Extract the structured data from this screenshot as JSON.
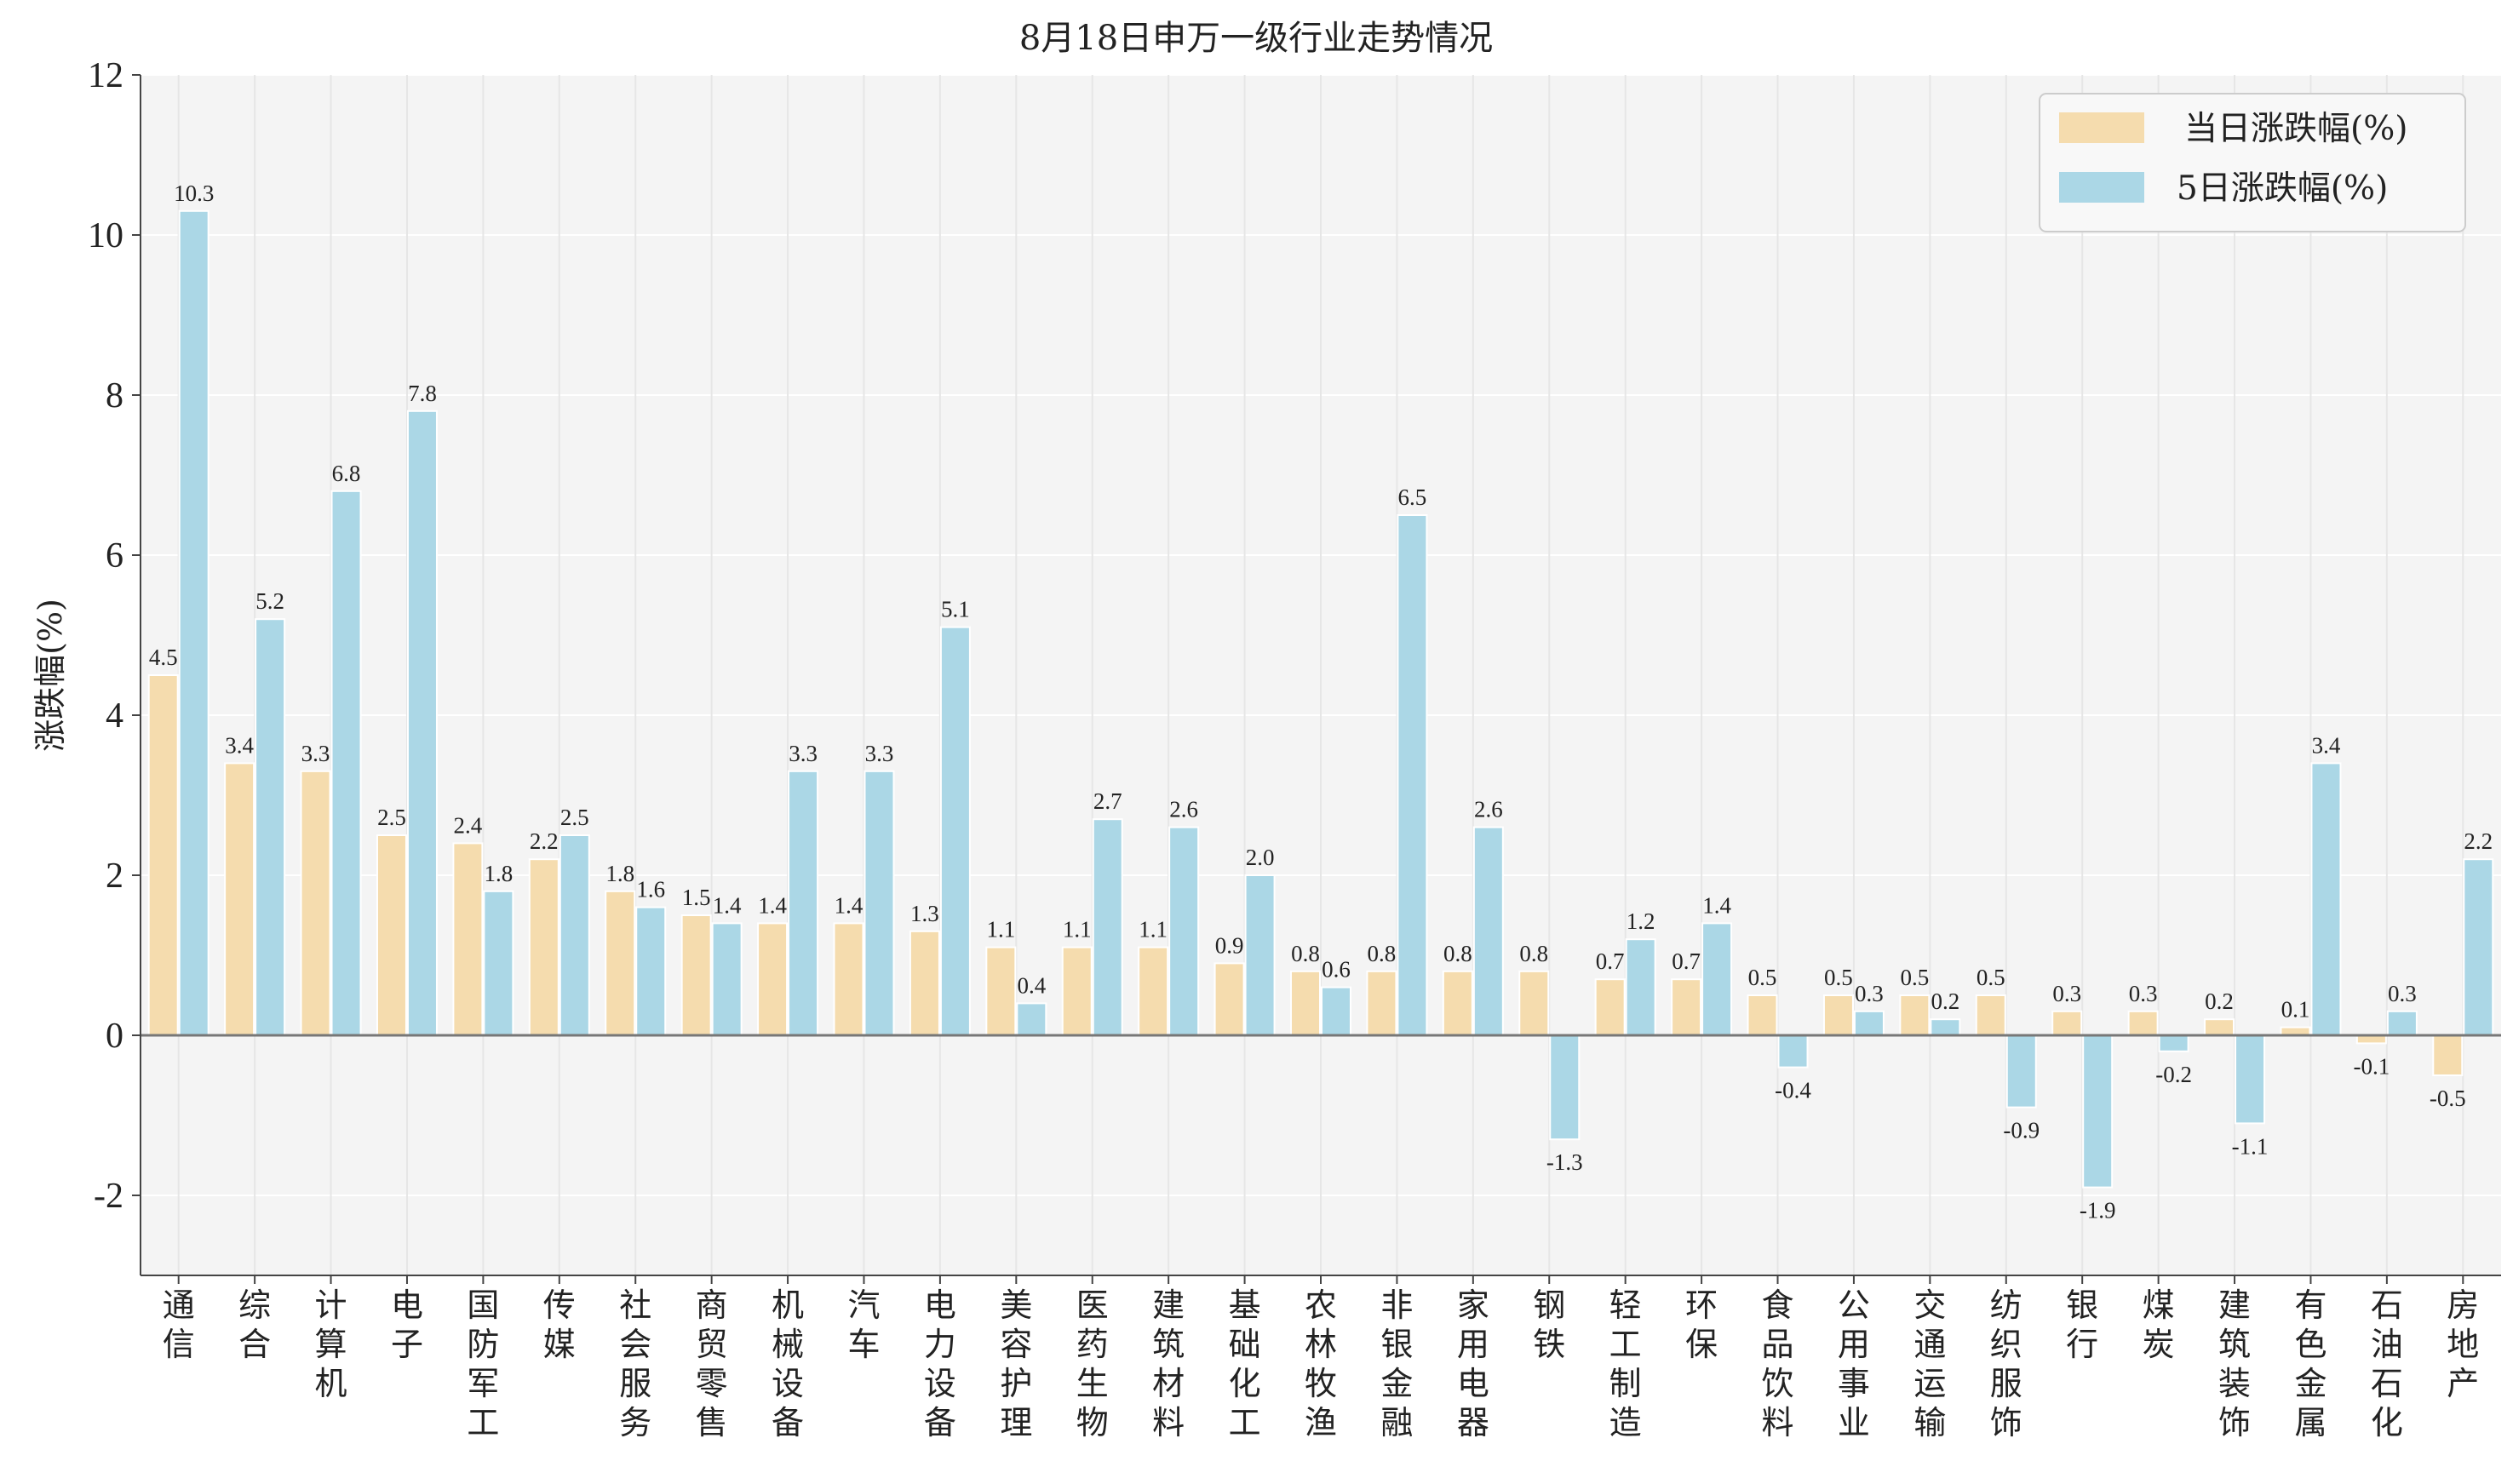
{
  "chart_data": {
    "type": "bar",
    "title": "8月18日申万一级行业走势情况",
    "xlabel": "",
    "ylabel": "涨跌幅(%)",
    "ylim": [
      -3,
      12
    ],
    "yticks": [
      -2,
      0,
      2,
      4,
      6,
      8,
      10,
      12
    ],
    "grid": true,
    "legend_position": "top-right",
    "categories": [
      "通信",
      "综合",
      "计算机",
      "电子",
      "国防军工",
      "传媒",
      "社会服务",
      "商贸零售",
      "机械设备",
      "汽车",
      "电力设备",
      "美容护理",
      "医药生物",
      "建筑材料",
      "基础化工",
      "农林牧渔",
      "非银金融",
      "家用电器",
      "钢铁",
      "轻工制造",
      "环保",
      "食品饮料",
      "公用事业",
      "交通运输",
      "纺织服饰",
      "银行",
      "煤炭",
      "建筑装饰",
      "有色金属",
      "石油石化",
      "房地产"
    ],
    "series": [
      {
        "name": "当日涨跌幅(%)",
        "color": "#f5dcae",
        "values": [
          4.5,
          3.4,
          3.3,
          2.5,
          2.4,
          2.2,
          1.8,
          1.5,
          1.4,
          1.4,
          1.3,
          1.1,
          1.1,
          1.1,
          0.9,
          0.8,
          0.8,
          0.8,
          0.8,
          0.7,
          0.7,
          0.5,
          0.5,
          0.5,
          0.5,
          0.3,
          0.3,
          0.2,
          0.1,
          -0.1,
          -0.5
        ],
        "labels": [
          "4.5",
          "3.4",
          "3.3",
          "2.5",
          "2.4",
          "2.2",
          "1.8",
          "1.5",
          "1.4",
          "1.4",
          "1.3",
          "1.1",
          "1.1",
          "1.1",
          "0.9",
          "0.8",
          "0.8",
          "0.8",
          "0.8",
          "0.7",
          "0.7",
          "0.5",
          "0.5",
          "0.5",
          "0.5",
          "0.3",
          "0.3",
          "0.2",
          "0.1",
          "-0.1",
          "-0.5"
        ]
      },
      {
        "name": "5日涨跌幅(%)",
        "color": "#abd7e6",
        "values": [
          10.3,
          5.2,
          6.8,
          7.8,
          1.8,
          2.5,
          1.6,
          1.4,
          3.3,
          3.3,
          5.1,
          0.4,
          2.7,
          2.6,
          2.0,
          0.6,
          6.5,
          2.6,
          -1.3,
          1.2,
          1.4,
          -0.4,
          0.3,
          0.2,
          -0.9,
          -1.9,
          -0.2,
          -1.1,
          3.4,
          0.3,
          2.2
        ],
        "labels": [
          "10.3",
          "5.2",
          "6.8",
          "7.8",
          "1.8",
          "2.5",
          "1.6",
          "1.4",
          "3.3",
          "3.3",
          "5.1",
          "0.4",
          "2.7",
          "2.6",
          "2.0",
          "0.6",
          "6.5",
          "2.6",
          "-1.3",
          "1.2",
          "1.4",
          "-0.4",
          "0.3",
          "0.2",
          "-0.9",
          "-1.9",
          "-0.2",
          "-1.1",
          "3.4",
          "0.3",
          "2.2"
        ]
      }
    ]
  }
}
